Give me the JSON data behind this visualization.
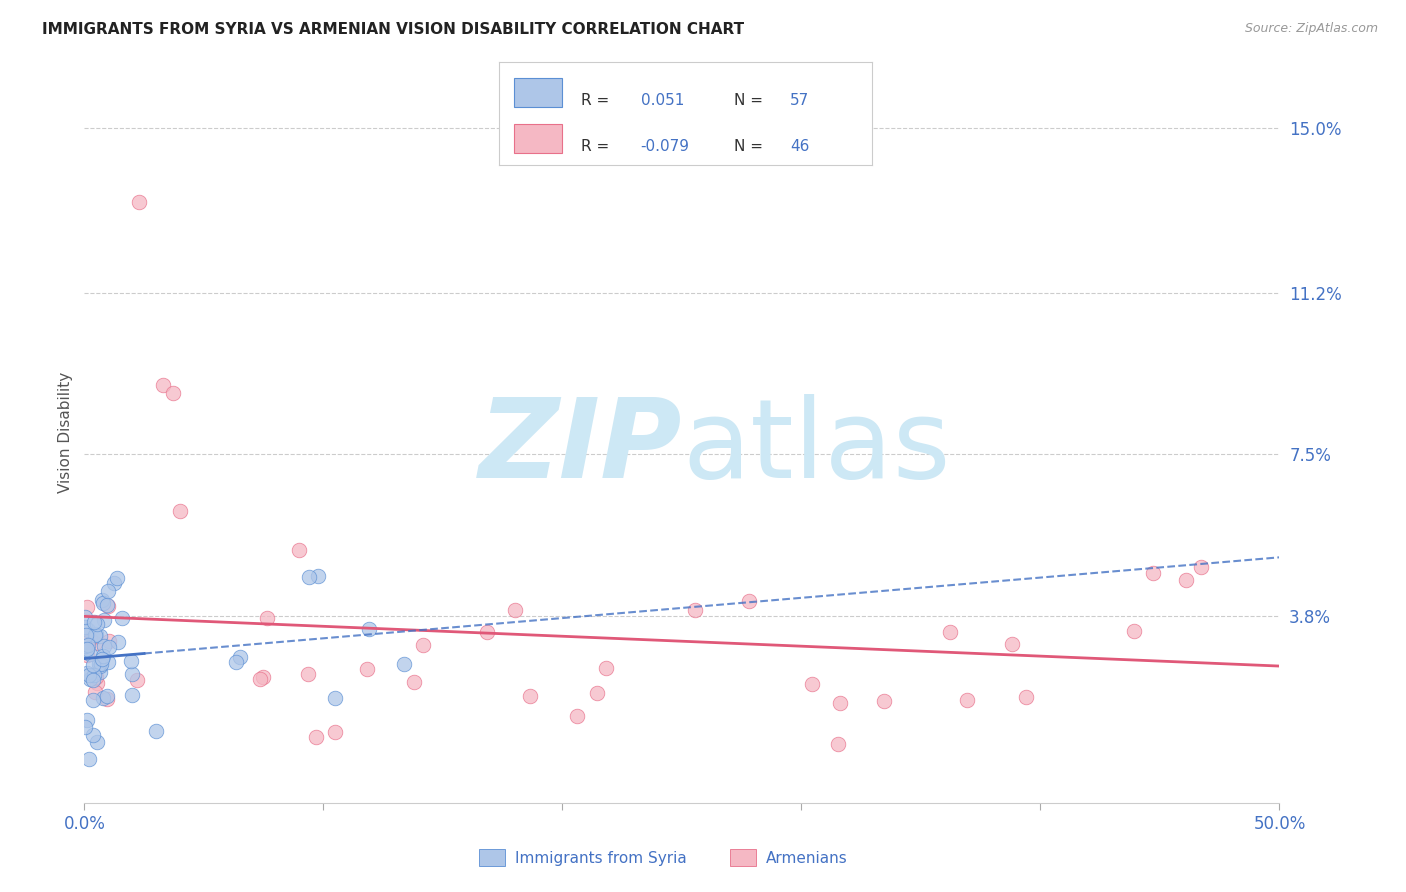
{
  "title": "IMMIGRANTS FROM SYRIA VS ARMENIAN VISION DISABILITY CORRELATION CHART",
  "source": "Source: ZipAtlas.com",
  "ylabel": "Vision Disability",
  "ytick_labels": [
    "15.0%",
    "11.2%",
    "7.5%",
    "3.8%"
  ],
  "ytick_values": [
    0.15,
    0.112,
    0.075,
    0.038
  ],
  "xlim": [
    0.0,
    0.5
  ],
  "ylim": [
    -0.005,
    0.165
  ],
  "r_syria": 0.051,
  "n_syria": 57,
  "r_armenian": -0.079,
  "n_armenian": 46,
  "color_syria_fill": "#aec6e8",
  "color_armenian_fill": "#f5b8c4",
  "color_syria_edge": "#5b8fd4",
  "color_armenian_edge": "#e8708a",
  "color_syria_line": "#4472c4",
  "color_armenian_line": "#e05878",
  "color_syria_label": "#4472c4",
  "color_armenian_label": "#4472c4",
  "color_title": "#222222",
  "color_source": "#999999",
  "color_right_ticks": "#4472c4",
  "color_grid": "#cccccc",
  "watermark_color": "#cde8f5",
  "legend_text_color": "#333333"
}
